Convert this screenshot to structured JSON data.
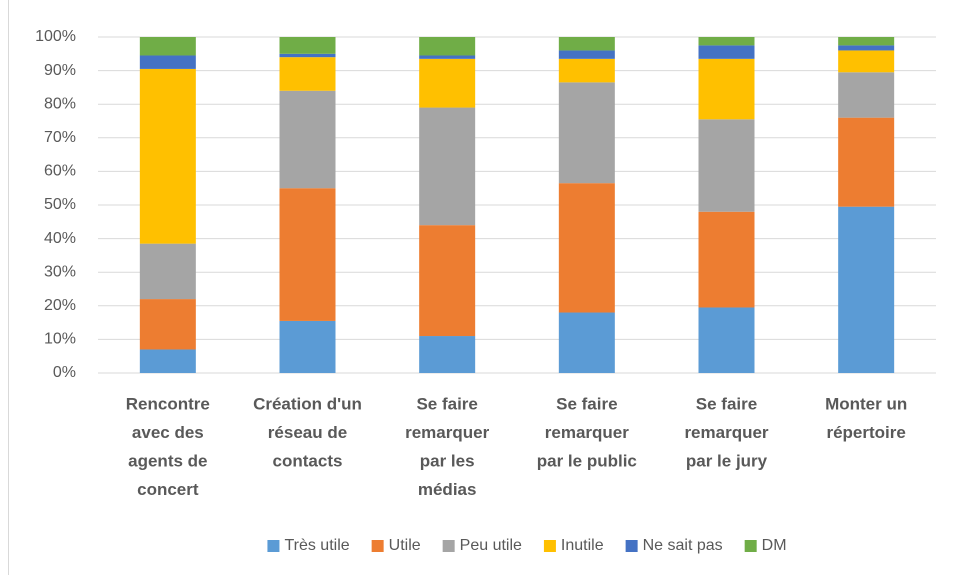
{
  "chart_data": {
    "type": "stacked_bar",
    "categories": [
      [
        "Rencontre",
        "avec des",
        "agents de",
        "concert"
      ],
      [
        "Création d'un",
        "réseau de",
        "contacts"
      ],
      [
        "Se faire",
        "remarquer",
        "par les",
        "médias"
      ],
      [
        "Se faire",
        "remarquer",
        "par le public"
      ],
      [
        "Se faire",
        "remarquer",
        "par le jury"
      ],
      [
        "Monter un",
        "répertoire"
      ]
    ],
    "series": [
      {
        "name": "Très utile",
        "color": "#5b9bd5",
        "values": [
          7,
          15.5,
          11,
          18,
          19.5,
          49.5
        ]
      },
      {
        "name": "Utile",
        "color": "#ed7d31",
        "values": [
          15,
          39.5,
          33,
          38.5,
          28.5,
          26.5
        ]
      },
      {
        "name": "Peu utile",
        "color": "#a5a5a5",
        "values": [
          16.5,
          29,
          35,
          30,
          27.5,
          13.5
        ]
      },
      {
        "name": "Inutile",
        "color": "#ffc000",
        "values": [
          52,
          10,
          14.5,
          7,
          18,
          6.5
        ]
      },
      {
        "name": "Ne sait pas",
        "color": "#4472c4",
        "values": [
          4,
          1,
          1,
          2.5,
          4,
          1.5
        ]
      },
      {
        "name": "DM",
        "color": "#70ad47",
        "values": [
          5.5,
          5,
          5.5,
          4,
          2.5,
          2.5
        ]
      }
    ],
    "ylim": [
      0,
      100
    ],
    "yticks": [
      {
        "value": 0,
        "label": "0%"
      },
      {
        "value": 10,
        "label": "10%"
      },
      {
        "value": 20,
        "label": "20%"
      },
      {
        "value": 30,
        "label": "30%"
      },
      {
        "value": 40,
        "label": "40%"
      },
      {
        "value": 50,
        "label": "50%"
      },
      {
        "value": 60,
        "label": "60%"
      },
      {
        "value": 70,
        "label": "70%"
      },
      {
        "value": 80,
        "label": "80%"
      },
      {
        "value": 90,
        "label": "90%"
      },
      {
        "value": 100,
        "label": "100%"
      }
    ],
    "grid": true,
    "legend": "bottom"
  }
}
